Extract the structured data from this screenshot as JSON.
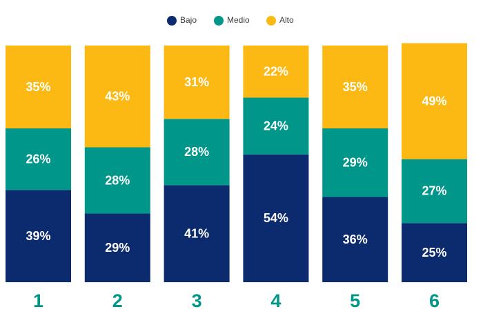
{
  "chart_data": {
    "type": "stacked-bar",
    "categories": [
      "1",
      "2",
      "3",
      "4",
      "5",
      "6"
    ],
    "series": [
      {
        "name": "Bajo",
        "color": "#0c2a6e",
        "values": [
          39,
          29,
          41,
          54,
          36,
          25
        ],
        "value_labels": [
          "39%",
          "29%",
          "41%",
          "54%",
          "36%",
          "25%"
        ]
      },
      {
        "name": "Medio",
        "color": "#00968a",
        "values": [
          26,
          28,
          28,
          24,
          29,
          27
        ],
        "value_labels": [
          "26%",
          "28%",
          "28%",
          "24%",
          "29%",
          "27%"
        ]
      },
      {
        "name": "Alto",
        "color": "#fdb913",
        "values": [
          35,
          43,
          31,
          22,
          35,
          49
        ],
        "value_labels": [
          "35%",
          "43%",
          "31%",
          "22%",
          "35%",
          "49%"
        ]
      }
    ]
  }
}
